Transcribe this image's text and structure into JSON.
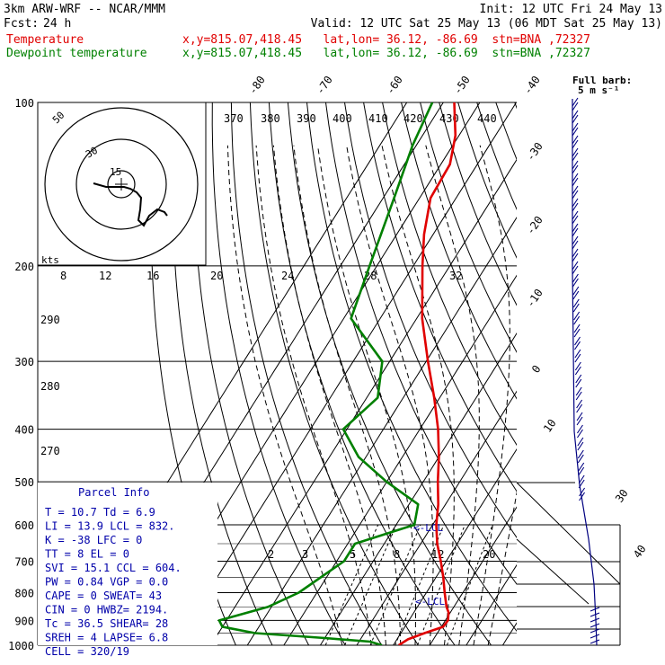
{
  "header": {
    "model": "3km ARW-WRF -- NCAR/MMM",
    "init": "Init: 12 UTC Fri 24 May 13",
    "fcst_label": "Fcst:",
    "fcst_hours": "24 h",
    "valid": "Valid: 12 UTC Sat 25 May 13 (06 MDT Sat 25 May 13)"
  },
  "legend": [
    {
      "name": "Temperature",
      "color": "#e00000",
      "info": "x,y=815.07,418.45   lat,lon= 36.12, -86.69  stn=BNA ,72327"
    },
    {
      "name": "Dewpoint temperature",
      "color": "#008000",
      "info": "x,y=815.07,418.45   lat,lon= 36.12, -86.69  stn=BNA ,72327"
    }
  ],
  "barb_legend": {
    "title": "Full barb:",
    "value": "5 m s⁻¹"
  },
  "hodograph": {
    "units": "kts",
    "ring_labels": [
      "50",
      "30",
      "15"
    ],
    "speed_ticks": [
      "8",
      "12",
      "16",
      "20",
      "24",
      "28",
      "32"
    ]
  },
  "labels": {
    "theta": [
      "370",
      "380",
      "390",
      "400",
      "410",
      "420",
      "430",
      "440"
    ],
    "mixing_ratio": [
      "2",
      "3",
      "5",
      "8",
      "12",
      "20"
    ],
    "left_theta": [
      "290",
      "280",
      "270"
    ],
    "lcl_upper": "<-LCL",
    "lcl_lower": "<-LCL"
  },
  "parcel_info": {
    "title": "Parcel Info",
    "rows": [
      "T  =    10.7 Td =   6.9",
      "LI =    13.9 LCL =  832.",
      "K  =     -38 LFC =     0",
      "TT =       8 EL  =     0",
      "SVI =   15.1 CCL =  604.",
      "PW =    0.84 VGP =   0.0",
      "CAPE =     0 SWEAT=   43",
      "CIN  =     0 HWBZ= 2194.",
      "Tc  =   36.5 SHEAR=   28",
      "SREH =     4 LAPSE=  6.8",
      "CELL = 320/19"
    ]
  },
  "chart_data": {
    "type": "skew-t log-p sounding",
    "pressure_axis": {
      "levels": [
        100,
        200,
        300,
        400,
        500,
        600,
        700,
        800,
        900,
        1000
      ],
      "units": "hPa",
      "scale": "log"
    },
    "isotherms_degC": [
      -80,
      -70,
      -60,
      -50,
      -40,
      -30,
      -20,
      -10,
      0,
      10,
      20,
      30,
      40
    ],
    "temperature_series": {
      "name": "Temperature",
      "color": "#e00000",
      "points": [
        {
          "p": 1000,
          "t": 11.5
        },
        {
          "p": 975,
          "t": 13.0
        },
        {
          "p": 950,
          "t": 16.5
        },
        {
          "p": 925,
          "t": 20.5
        },
        {
          "p": 900,
          "t": 20.7
        },
        {
          "p": 870,
          "t": 19.5
        },
        {
          "p": 850,
          "t": 18.0
        },
        {
          "p": 800,
          "t": 15.0
        },
        {
          "p": 750,
          "t": 12.0
        },
        {
          "p": 700,
          "t": 8.5
        },
        {
          "p": 650,
          "t": 4.5
        },
        {
          "p": 600,
          "t": 1.0
        },
        {
          "p": 550,
          "t": -2.0
        },
        {
          "p": 500,
          "t": -6.0
        },
        {
          "p": 450,
          "t": -10.0
        },
        {
          "p": 400,
          "t": -15.0
        },
        {
          "p": 350,
          "t": -21.5
        },
        {
          "p": 300,
          "t": -29.5
        },
        {
          "p": 250,
          "t": -38.5
        },
        {
          "p": 200,
          "t": -47.5
        },
        {
          "p": 175,
          "t": -52.5
        },
        {
          "p": 150,
          "t": -57.0
        },
        {
          "p": 130,
          "t": -57.5
        },
        {
          "p": 115,
          "t": -61.0
        },
        {
          "p": 100,
          "t": -67.0
        }
      ]
    },
    "dewpoint_series": {
      "name": "Dewpoint temperature",
      "color": "#008000",
      "points": [
        {
          "p": 1000,
          "t": 6.9
        },
        {
          "p": 985,
          "t": 3.0
        },
        {
          "p": 970,
          "t": -10.0
        },
        {
          "p": 950,
          "t": -30.0
        },
        {
          "p": 925,
          "t": -40.0
        },
        {
          "p": 900,
          "t": -42.0
        },
        {
          "p": 850,
          "t": -31.0
        },
        {
          "p": 800,
          "t": -25.0
        },
        {
          "p": 700,
          "t": -18.0
        },
        {
          "p": 650,
          "t": -18.0
        },
        {
          "p": 600,
          "t": -5.0
        },
        {
          "p": 550,
          "t": -7.5
        },
        {
          "p": 500,
          "t": -20.0
        },
        {
          "p": 450,
          "t": -32.0
        },
        {
          "p": 400,
          "t": -41.0
        },
        {
          "p": 350,
          "t": -37.0
        },
        {
          "p": 300,
          "t": -42.0
        },
        {
          "p": 250,
          "t": -58.0
        },
        {
          "p": 200,
          "t": -62.0
        },
        {
          "p": 150,
          "t": -67.0
        },
        {
          "p": 120,
          "t": -71.0
        },
        {
          "p": 100,
          "t": -73.0
        }
      ]
    },
    "lcl_hpa": 832,
    "ccl_hpa": 604
  }
}
